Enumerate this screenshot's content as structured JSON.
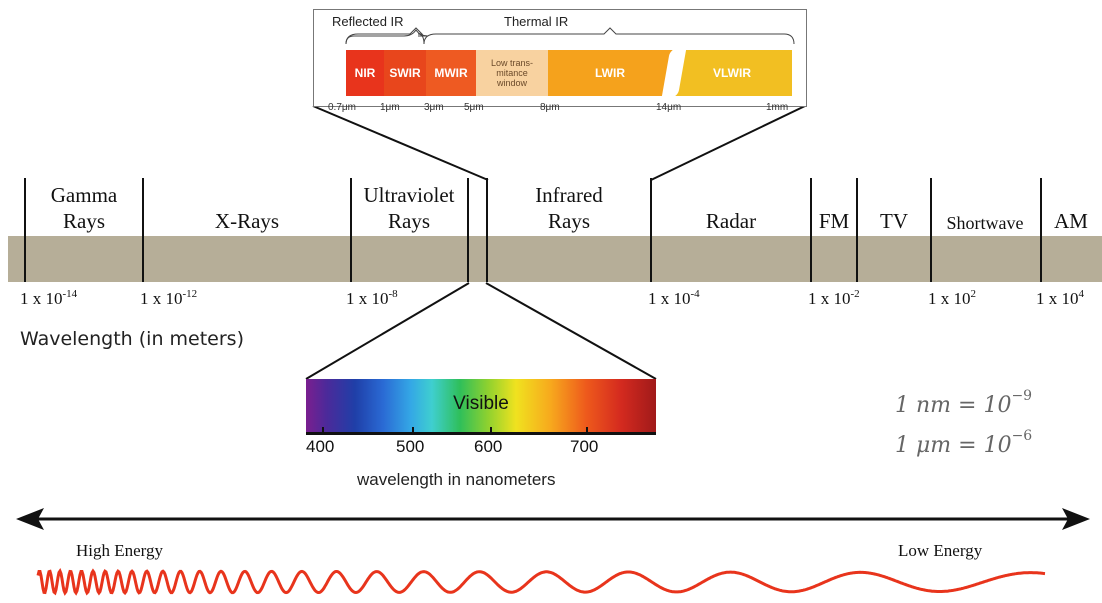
{
  "spectrum": {
    "regions": [
      {
        "id": "gamma",
        "label": "Gamma\nRays"
      },
      {
        "id": "xrays",
        "label": "X-Rays"
      },
      {
        "id": "uv",
        "label": "Ultraviolet\nRays"
      },
      {
        "id": "ir",
        "label": "Infrared\nRays"
      },
      {
        "id": "radar",
        "label": "Radar"
      },
      {
        "id": "fm",
        "label": "FM"
      },
      {
        "id": "tv",
        "label": "TV"
      },
      {
        "id": "shortwave",
        "label": "Shortwave"
      },
      {
        "id": "am",
        "label": "AM"
      }
    ],
    "ticks": [
      {
        "base": "1 x 10",
        "exp": "-14"
      },
      {
        "base": "1 x 10",
        "exp": "-12"
      },
      {
        "base": "1 x 10",
        "exp": "-8"
      },
      {
        "base": "1 x 10",
        "exp": "-4"
      },
      {
        "base": "1 x 10",
        "exp": "-2"
      },
      {
        "base": "1 x 10",
        "exp": "2"
      },
      {
        "base": "1 x 10",
        "exp": "4"
      }
    ],
    "axis_label": "Wavelength (in meters)"
  },
  "ir_inset": {
    "reflected_label": "Reflected IR",
    "thermal_label": "Thermal IR",
    "segments": [
      {
        "label": "NIR",
        "color": "#e8341c"
      },
      {
        "label": "SWIR",
        "color": "#e8461c"
      },
      {
        "label": "MWIR",
        "color": "#ee5a22"
      },
      {
        "label": "Low trans-\nmitance\nwindow",
        "color": "#f8d2a0"
      },
      {
        "label": "LWIR",
        "color": "#f5a21c"
      },
      {
        "label": "VLWIR",
        "color": "#f2bf22"
      }
    ],
    "ticks": [
      "0.7μm",
      "1μm",
      "3μm",
      "5μm",
      "8μm",
      "14μm",
      "1mm"
    ]
  },
  "visible": {
    "title": "Visible",
    "ticks": [
      "400",
      "500",
      "600",
      "700"
    ],
    "caption": "wavelength in nanometers"
  },
  "equations": {
    "nm": {
      "lhs": "1 nm = 10",
      "exp": "−9"
    },
    "um": {
      "lhs": "1 μm = 10",
      "exp": "−6"
    }
  },
  "energy": {
    "high": "High Energy",
    "low": "Low Energy"
  },
  "colors": {
    "band": "#b6ae98",
    "wave": "#e8341c"
  }
}
